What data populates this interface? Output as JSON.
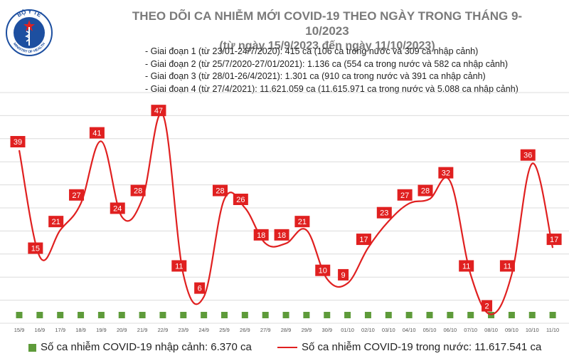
{
  "header": {
    "logo_text_top": "BỘ Y TẾ",
    "logo_text_bottom": "MINISTRY OF HEALTH",
    "title_line1": "THEO DÕI CA NHIỄM MỚI COVID-19 THEO NGÀY TRONG THÁNG 9-10/2023",
    "title_line2": "(từ ngày 15/9/2023 đến ngày 11/10/2023)"
  },
  "stages": [
    "- Giai đoạn 1 (từ 23/01-24/7/2020): 415 ca (106 ca trong nước và 309 ca nhập cảnh)",
    "- Giai đoạn 2 (từ 25/7/2020-27/01/2021): 1.136 ca (554 ca trong nước và 582 ca nhập cảnh)",
    "- Giai đoạn 3 (từ 28/01-26/4/2021): 1.301 ca (910 ca trong nước và 391 ca nhập cảnh)",
    "- Giai đoạn 4 (từ 27/4/2021): 11.621.059 ca (11.615.971 ca trong nước và 5.088 ca nhập cảnh)"
  ],
  "legend": {
    "imported": "Số ca nhiễm COVID-19 nhập cảnh: 6.370 ca",
    "domestic": "Số ca nhiễm COVID-19 trong nước: 11.617.541 ca"
  },
  "colors": {
    "line": "#e02020",
    "label_box": "#e02020",
    "imported_bar": "#5e9b3a",
    "title": "#7a7a7a",
    "logo_blue": "#1d4fa0"
  },
  "chart_data": {
    "type": "line",
    "categories": [
      "15/9",
      "16/9",
      "17/9",
      "18/9",
      "19/9",
      "20/9",
      "21/9",
      "22/9",
      "23/9",
      "24/9",
      "25/9",
      "26/9",
      "27/9",
      "28/9",
      "29/9",
      "30/9",
      "01/10",
      "02/10",
      "03/10",
      "04/10",
      "05/10",
      "06/10",
      "07/10",
      "08/10",
      "09/10",
      "10/10",
      "11/10"
    ],
    "series": [
      {
        "name": "Số ca nhiễm COVID-19 trong nước",
        "values": [
          39,
          15,
          21,
          27,
          41,
          24,
          28,
          47,
          11,
          6,
          28,
          26,
          18,
          18,
          21,
          10,
          9,
          17,
          23,
          27,
          28,
          32,
          11,
          2,
          11,
          36,
          17
        ]
      },
      {
        "name": "Số ca nhiễm COVID-19 nhập cảnh",
        "values": [
          0,
          0,
          0,
          0,
          0,
          0,
          0,
          0,
          0,
          0,
          0,
          0,
          0,
          0,
          0,
          0,
          0,
          0,
          0,
          0,
          0,
          0,
          0,
          0,
          0,
          0,
          0
        ]
      }
    ],
    "ylim": [
      0,
      52
    ],
    "grid": true,
    "legend_position": "bottom",
    "data_labels": true
  }
}
